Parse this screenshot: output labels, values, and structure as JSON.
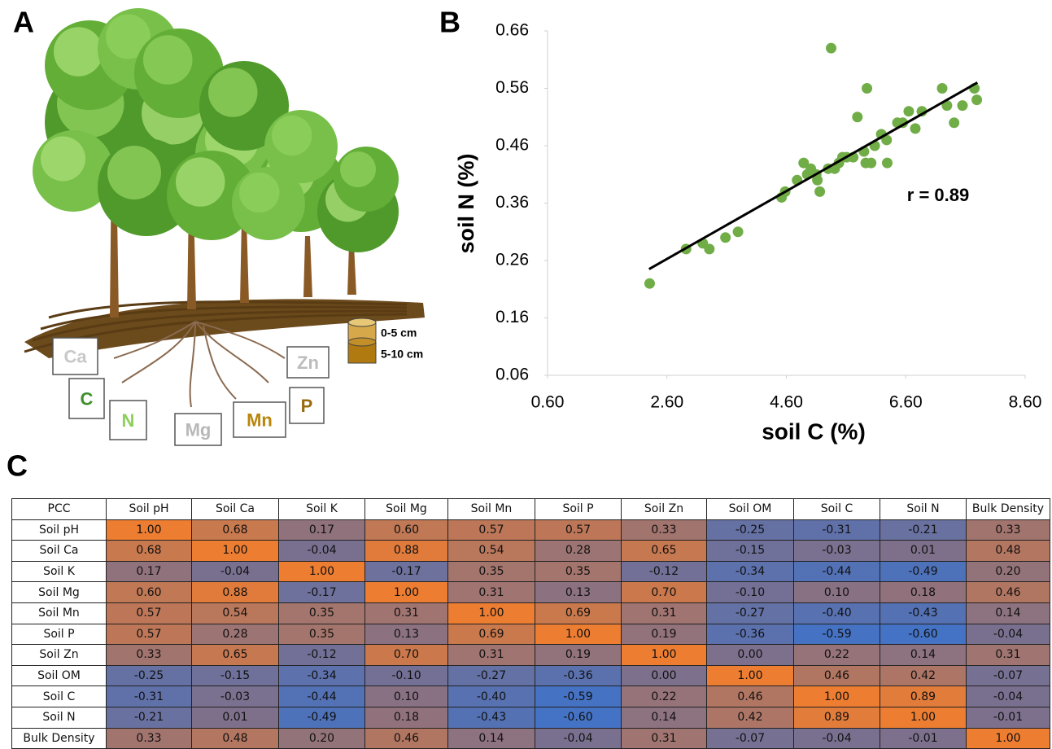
{
  "panels": {
    "a": {
      "label": "A",
      "nutrients": [
        "Ca",
        "C",
        "N",
        "Mg",
        "Mn",
        "P",
        "Zn"
      ],
      "depths": [
        "0-5 cm",
        "5-10 cm"
      ]
    },
    "b": {
      "label": "B"
    },
    "c": {
      "label": "C"
    }
  },
  "chart_data": {
    "type": "scatter",
    "x_label": "soil C (%)",
    "y_label": "soil N (%)",
    "annotation": "r = 0.89",
    "color": "#70ad47",
    "x": [
      2.31,
      2.92,
      3.2,
      3.31,
      3.58,
      3.79,
      4.52,
      4.58,
      4.78,
      4.89,
      4.95,
      5.01,
      5.1,
      5.12,
      5.16,
      5.3,
      5.35,
      5.41,
      5.48,
      5.54,
      5.61,
      5.72,
      5.79,
      5.9,
      5.93,
      5.95,
      6.02,
      6.08,
      6.19,
      6.29,
      6.28,
      6.46,
      6.55,
      6.65,
      6.76,
      6.87,
      7.21,
      7.29,
      7.41,
      7.55,
      7.75,
      7.79
    ],
    "y": [
      0.22,
      0.28,
      0.29,
      0.28,
      0.3,
      0.31,
      0.37,
      0.38,
      0.4,
      0.43,
      0.41,
      0.42,
      0.41,
      0.4,
      0.38,
      0.42,
      0.63,
      0.42,
      0.43,
      0.44,
      0.44,
      0.44,
      0.51,
      0.45,
      0.43,
      0.56,
      0.43,
      0.46,
      0.48,
      0.43,
      0.47,
      0.5,
      0.5,
      0.52,
      0.49,
      0.52,
      0.56,
      0.53,
      0.5,
      0.53,
      0.56,
      0.54
    ],
    "trendline": {
      "x": [
        2.3,
        7.8
      ],
      "y": [
        0.245,
        0.57
      ],
      "color": "#000000"
    },
    "xlim": [
      0.6,
      8.6
    ],
    "xticks": [
      {
        "value": 0.6,
        "label": "0.60"
      },
      {
        "value": 2.6,
        "label": "2.60"
      },
      {
        "value": 4.6,
        "label": "4.60"
      },
      {
        "value": 6.6,
        "label": "6.60"
      },
      {
        "value": 8.6,
        "label": "8.60"
      }
    ],
    "ylim": [
      0.06,
      0.66
    ],
    "yticks": [
      {
        "value": 0.06,
        "label": "0.06"
      },
      {
        "value": 0.16,
        "label": "0.16"
      },
      {
        "value": 0.26,
        "label": "0.26"
      },
      {
        "value": 0.36,
        "label": "0.36"
      },
      {
        "value": 0.46,
        "label": "0.46"
      },
      {
        "value": 0.56,
        "label": "0.56"
      },
      {
        "value": 0.66,
        "label": "0.66"
      }
    ]
  },
  "table": {
    "header": [
      "PCC",
      "Soil pH",
      "Soil Ca",
      "Soil K",
      "Soil Mg",
      "Soil Mn",
      "Soil P",
      "Soil Zn",
      "Soil OM",
      "Soil C",
      "Soil N",
      "Bulk Density"
    ],
    "rows": [
      [
        "Soil pH",
        "1.00",
        "0.68",
        "0.17",
        "0.60",
        "0.57",
        "0.57",
        "0.33",
        "-0.25",
        "-0.31",
        "-0.21",
        "0.33"
      ],
      [
        "Soil Ca",
        "0.68",
        "1.00",
        "-0.04",
        "0.88",
        "0.54",
        "0.28",
        "0.65",
        "-0.15",
        "-0.03",
        "0.01",
        "0.48"
      ],
      [
        "Soil K",
        "0.17",
        "-0.04",
        "1.00",
        "-0.17",
        "0.35",
        "0.35",
        "-0.12",
        "-0.34",
        "-0.44",
        "-0.49",
        "0.20"
      ],
      [
        "Soil Mg",
        "0.60",
        "0.88",
        "-0.17",
        "1.00",
        "0.31",
        "0.13",
        "0.70",
        "-0.10",
        "0.10",
        "0.18",
        "0.46"
      ],
      [
        "Soil Mn",
        "0.57",
        "0.54",
        "0.35",
        "0.31",
        "1.00",
        "0.69",
        "0.31",
        "-0.27",
        "-0.40",
        "-0.43",
        "0.14"
      ],
      [
        "Soil P",
        "0.57",
        "0.28",
        "0.35",
        "0.13",
        "0.69",
        "1.00",
        "0.19",
        "-0.36",
        "-0.59",
        "-0.60",
        "-0.04"
      ],
      [
        "Soil Zn",
        "0.33",
        "0.65",
        "-0.12",
        "0.70",
        "0.31",
        "0.19",
        "1.00",
        "0.00",
        "0.22",
        "0.14",
        "0.31"
      ],
      [
        "Soil OM",
        "-0.25",
        "-0.15",
        "-0.34",
        "-0.10",
        "-0.27",
        "-0.36",
        "0.00",
        "1.00",
        "0.46",
        "0.42",
        "-0.07"
      ],
      [
        "Soil C",
        "-0.31",
        "-0.03",
        "-0.44",
        "0.10",
        "-0.40",
        "-0.59",
        "0.22",
        "0.46",
        "1.00",
        "0.89",
        "-0.04"
      ],
      [
        "Soil N",
        "-0.21",
        "0.01",
        "-0.49",
        "0.18",
        "-0.43",
        "-0.60",
        "0.14",
        "0.42",
        "0.89",
        "1.00",
        "-0.01"
      ],
      [
        "Bulk Density",
        "0.33",
        "0.48",
        "0.20",
        "0.46",
        "0.14",
        "-0.04",
        "0.31",
        "-0.07",
        "-0.04",
        "-0.01",
        "1.00"
      ]
    ]
  }
}
